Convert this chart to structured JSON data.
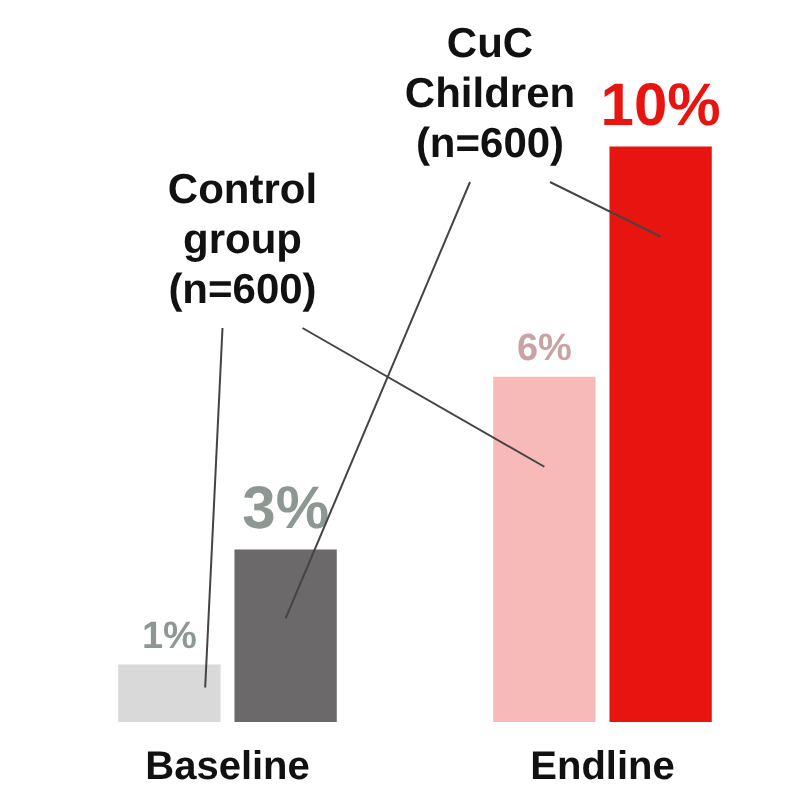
{
  "chart_data": {
    "type": "bar",
    "categories": [
      "Baseline",
      "Endline"
    ],
    "series": [
      {
        "name": "Control group (n=600)",
        "colors": [
          "#d9d9d9",
          "#f8b9b9"
        ],
        "values": [
          1,
          6
        ],
        "value_labels": [
          "1%",
          "6%"
        ]
      },
      {
        "name": "CuC Children (n=600)",
        "colors": [
          "#6b6969",
          "#e8140f"
        ],
        "values": [
          3,
          10
        ],
        "value_labels": [
          "3%",
          "10%"
        ]
      }
    ],
    "legend": false,
    "grid": false
  }
}
